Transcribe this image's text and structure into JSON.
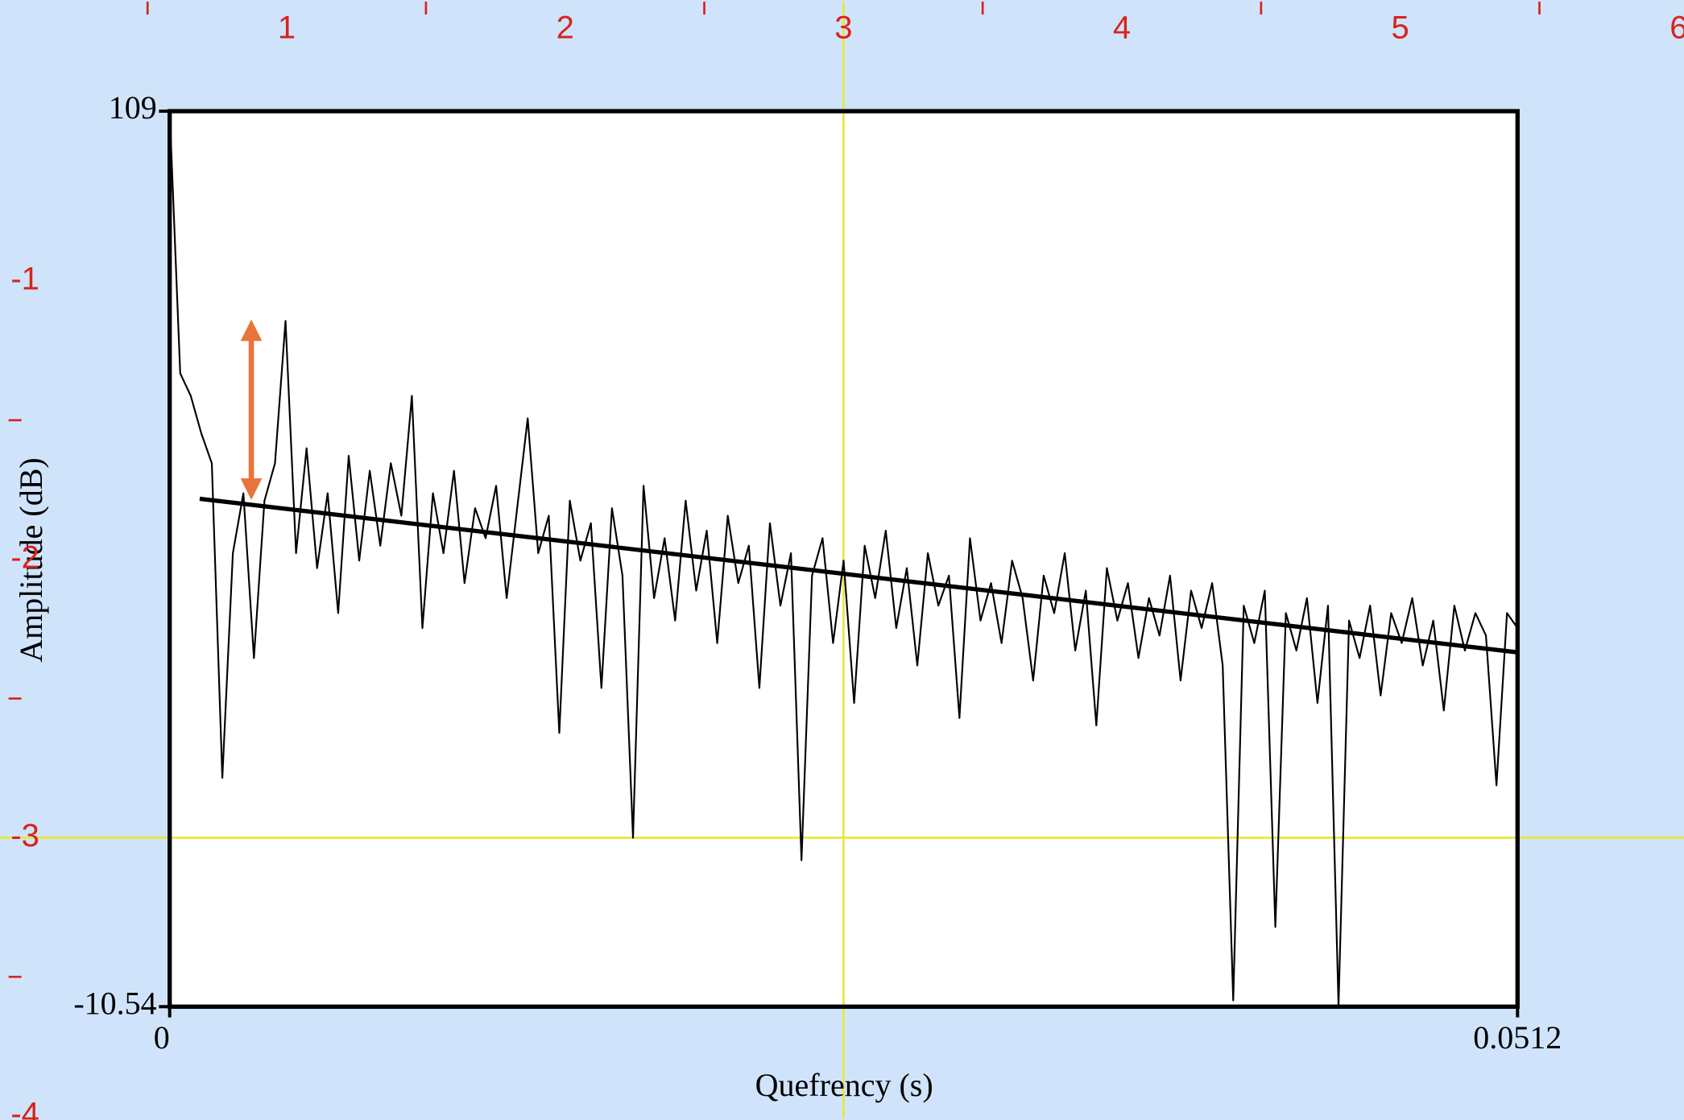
{
  "page_ruler": {
    "x_ticks": [
      1,
      2,
      3,
      4,
      5,
      6
    ],
    "y_ticks": [
      -1,
      -2,
      -3,
      -4
    ],
    "selection_x": 3,
    "selection_y": -3
  },
  "chart_data": {
    "type": "line",
    "ylabel": "Amplitude (dB)",
    "xlabel": "Quefrency (s)",
    "xlim": [
      0,
      0.0512
    ],
    "ylim": [
      -10.54,
      109
    ],
    "xticks": [
      0,
      0.0512
    ],
    "yticks": [
      -10.54,
      109
    ],
    "color": "#000000",
    "x": [
      0,
      0.0004,
      0.0008,
      0.0012,
      0.0016,
      0.002,
      0.0024,
      0.0028,
      0.0032,
      0.0036,
      0.004,
      0.0044,
      0.0048,
      0.0052,
      0.0056,
      0.006,
      0.0064,
      0.0068,
      0.0072,
      0.0076,
      0.008,
      0.0084,
      0.0088,
      0.0092,
      0.0096,
      0.01,
      0.0104,
      0.0108,
      0.0112,
      0.0116,
      0.012,
      0.0124,
      0.0128,
      0.0132,
      0.0136,
      0.014,
      0.0144,
      0.0148,
      0.0152,
      0.0156,
      0.016,
      0.0164,
      0.0168,
      0.0172,
      0.0176,
      0.018,
      0.0184,
      0.0188,
      0.0192,
      0.0196,
      0.02,
      0.0204,
      0.0208,
      0.0212,
      0.0216,
      0.022,
      0.0224,
      0.0228,
      0.0232,
      0.0236,
      0.024,
      0.0244,
      0.0248,
      0.0252,
      0.0256,
      0.026,
      0.0264,
      0.0268,
      0.0272,
      0.0276,
      0.028,
      0.0284,
      0.0288,
      0.0292,
      0.0296,
      0.03,
      0.0304,
      0.0308,
      0.0312,
      0.0316,
      0.032,
      0.0324,
      0.0328,
      0.0332,
      0.0336,
      0.034,
      0.0344,
      0.0348,
      0.0352,
      0.0356,
      0.036,
      0.0364,
      0.0368,
      0.0372,
      0.0376,
      0.038,
      0.0384,
      0.0388,
      0.0392,
      0.0396,
      0.04,
      0.0404,
      0.0408,
      0.0412,
      0.0416,
      0.042,
      0.0424,
      0.0428,
      0.0432,
      0.0436,
      0.044,
      0.0444,
      0.0448,
      0.0452,
      0.0456,
      0.046,
      0.0464,
      0.0468,
      0.0472,
      0.0476,
      0.048,
      0.0484,
      0.0488,
      0.0492,
      0.0496,
      0.05,
      0.0504,
      0.0508,
      0.0512
    ],
    "values": [
      109,
      74,
      71,
      66,
      62,
      20,
      50,
      58,
      36,
      57,
      62,
      81,
      50,
      64,
      48,
      58,
      42,
      63,
      49,
      61,
      51,
      62,
      55,
      71,
      40,
      58,
      50,
      61,
      46,
      56,
      52,
      59,
      44,
      56,
      68,
      50,
      55,
      26,
      57,
      49,
      54,
      32,
      56,
      47,
      12,
      59,
      44,
      52,
      41,
      57,
      45,
      53,
      38,
      55,
      46,
      51,
      32,
      54,
      43,
      50,
      9,
      47,
      52,
      38,
      49,
      30,
      51,
      44,
      53,
      40,
      48,
      35,
      50,
      43,
      47,
      28,
      52,
      41,
      46,
      38,
      49,
      44,
      33,
      47,
      42,
      50,
      37,
      45,
      27,
      48,
      41,
      46,
      36,
      44,
      39,
      47,
      33,
      45,
      40,
      46,
      35,
      -9.7,
      43,
      38,
      45,
      0.1,
      42,
      37,
      44,
      30,
      43,
      -10.4,
      41,
      36,
      43,
      31,
      42,
      38,
      44,
      35,
      41,
      29,
      43,
      37,
      42,
      39,
      19,
      42,
      40
    ],
    "trend": {
      "x": [
        0.00114,
        0.0512
      ],
      "values": [
        57.26,
        36.76
      ],
      "color": "#000000"
    }
  }
}
